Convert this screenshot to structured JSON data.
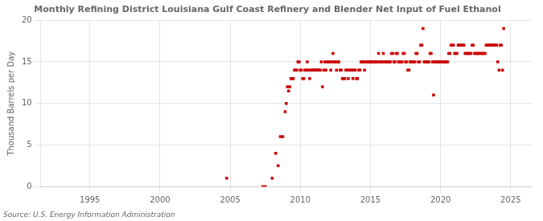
{
  "chart_data": {
    "type": "scatter",
    "title": "Monthly Refining District Louisiana Gulf Coast Refinery and Blender Net Input of Fuel Ethanol",
    "ylabel": "Thousand Barrels per Day",
    "annotation": "Source: U.S. Energy Information Administration",
    "color": "#cc0000",
    "marker": "square",
    "grid": true,
    "xlim": [
      1991.5,
      2026.5
    ],
    "xticks": [
      1995,
      2000,
      2005,
      2010,
      2015,
      2020,
      2025
    ],
    "ylim": [
      0,
      20
    ],
    "yticks": [
      0,
      5,
      10,
      15,
      20
    ],
    "x": [
      2004.75,
      2007.33,
      2007.5,
      2008.0,
      2008.25,
      2008.42,
      2008.58,
      2008.75,
      2008.92,
      2009.0,
      2009.08,
      2009.17,
      2009.25,
      2009.33,
      2009.42,
      2009.5,
      2009.58,
      2009.67,
      2009.75,
      2009.83,
      2009.92,
      2010.0,
      2010.08,
      2010.17,
      2010.25,
      2010.33,
      2010.42,
      2010.5,
      2010.58,
      2010.67,
      2010.75,
      2010.83,
      2010.92,
      2011.0,
      2011.08,
      2011.17,
      2011.25,
      2011.33,
      2011.42,
      2011.5,
      2011.58,
      2011.67,
      2011.75,
      2011.83,
      2011.92,
      2012.0,
      2012.08,
      2012.17,
      2012.25,
      2012.33,
      2012.42,
      2012.5,
      2012.58,
      2012.67,
      2012.75,
      2012.83,
      2012.92,
      2013.0,
      2013.08,
      2013.17,
      2013.25,
      2013.33,
      2013.42,
      2013.5,
      2013.58,
      2013.67,
      2013.75,
      2013.83,
      2013.92,
      2014.0,
      2014.08,
      2014.17,
      2014.25,
      2014.33,
      2014.42,
      2014.5,
      2014.58,
      2014.67,
      2014.75,
      2014.83,
      2014.92,
      2015.0,
      2015.08,
      2015.17,
      2015.25,
      2015.33,
      2015.42,
      2015.5,
      2015.58,
      2015.67,
      2015.75,
      2015.83,
      2015.92,
      2016.0,
      2016.08,
      2016.17,
      2016.25,
      2016.33,
      2016.42,
      2016.5,
      2016.58,
      2016.67,
      2016.75,
      2016.83,
      2016.92,
      2017.0,
      2017.08,
      2017.17,
      2017.25,
      2017.33,
      2017.42,
      2017.5,
      2017.58,
      2017.67,
      2017.75,
      2017.83,
      2017.92,
      2018.0,
      2018.08,
      2018.17,
      2018.25,
      2018.33,
      2018.42,
      2018.5,
      2018.58,
      2018.67,
      2018.75,
      2018.83,
      2018.92,
      2019.0,
      2019.08,
      2019.17,
      2019.25,
      2019.33,
      2019.42,
      2019.5,
      2019.58,
      2019.67,
      2019.75,
      2019.83,
      2019.92,
      2020.0,
      2020.08,
      2020.17,
      2020.25,
      2020.33,
      2020.42,
      2020.5,
      2020.58,
      2020.67,
      2020.75,
      2020.83,
      2020.92,
      2021.0,
      2021.08,
      2021.17,
      2021.25,
      2021.33,
      2021.42,
      2021.5,
      2021.58,
      2021.67,
      2021.75,
      2021.83,
      2021.92,
      2022.0,
      2022.08,
      2022.17,
      2022.25,
      2022.33,
      2022.42,
      2022.5,
      2022.58,
      2022.67,
      2022.75,
      2022.83,
      2022.92,
      2023.0,
      2023.08,
      2023.17,
      2023.25,
      2023.33,
      2023.42,
      2023.5,
      2023.58,
      2023.67,
      2023.75,
      2023.83,
      2023.92,
      2024.0,
      2024.08,
      2024.17,
      2024.25,
      2024.33,
      2024.42,
      2024.5
    ],
    "values": [
      1.0,
      0.0,
      0.0,
      1.0,
      4.0,
      2.5,
      6.0,
      6.0,
      9.0,
      10.0,
      12.0,
      11.5,
      12.0,
      13.0,
      13.0,
      13.0,
      14.0,
      14.0,
      14.0,
      15.0,
      15.0,
      14.0,
      14.0,
      13.0,
      13.0,
      14.0,
      14.0,
      15.0,
      14.0,
      13.0,
      14.0,
      14.0,
      14.0,
      14.0,
      14.0,
      14.0,
      14.0,
      14.0,
      14.0,
      15.0,
      12.0,
      14.0,
      15.0,
      14.0,
      15.0,
      15.0,
      15.0,
      14.0,
      15.0,
      16.0,
      15.0,
      15.0,
      14.0,
      15.0,
      15.0,
      14.0,
      14.0,
      13.0,
      13.0,
      13.0,
      14.0,
      14.0,
      13.0,
      14.0,
      14.0,
      14.0,
      13.0,
      14.0,
      14.0,
      13.0,
      13.0,
      14.0,
      14.0,
      15.0,
      15.0,
      15.0,
      14.0,
      15.0,
      15.0,
      15.0,
      15.0,
      15.0,
      15.0,
      15.0,
      15.0,
      15.0,
      15.0,
      15.0,
      16.0,
      15.0,
      15.0,
      15.0,
      16.0,
      15.0,
      15.0,
      15.0,
      15.0,
      15.0,
      15.0,
      16.0,
      16.0,
      15.0,
      15.0,
      16.0,
      16.0,
      15.0,
      15.0,
      15.0,
      15.0,
      16.0,
      16.0,
      15.0,
      15.0,
      14.0,
      14.0,
      15.0,
      15.0,
      15.0,
      15.0,
      15.0,
      16.0,
      16.0,
      15.0,
      15.0,
      17.0,
      17.0,
      19.0,
      15.0,
      15.0,
      15.0,
      15.0,
      15.0,
      16.0,
      16.0,
      15.0,
      11.0,
      15.0,
      15.0,
      15.0,
      15.0,
      15.0,
      15.0,
      15.0,
      15.0,
      15.0,
      15.0,
      15.0,
      15.0,
      16.0,
      16.0,
      17.0,
      17.0,
      17.0,
      16.0,
      16.0,
      16.0,
      17.0,
      17.0,
      17.0,
      17.0,
      17.0,
      17.0,
      16.0,
      16.0,
      16.0,
      16.0,
      16.0,
      16.0,
      17.0,
      17.0,
      16.0,
      16.0,
      16.0,
      16.0,
      16.0,
      16.0,
      16.0,
      16.0,
      16.0,
      16.0,
      17.0,
      17.0,
      17.0,
      17.0,
      17.0,
      17.0,
      17.0,
      17.0,
      17.0,
      17.0,
      15.0,
      14.0,
      17.0,
      17.0,
      14.0,
      19.0
    ]
  }
}
